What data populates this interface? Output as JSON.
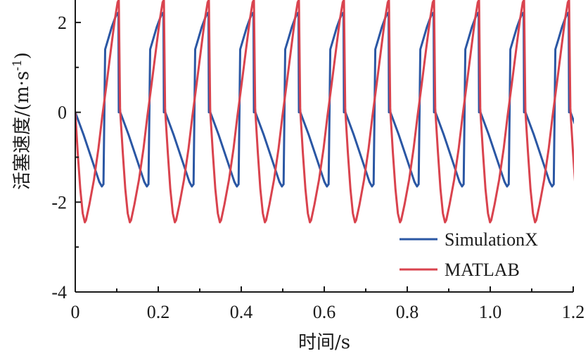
{
  "chart_data": {
    "type": "line",
    "xlabel": "时间/s",
    "ylabel_main": "活塞速度/(m·s",
    "ylabel_sup": "-1",
    "ylabel_close": ")",
    "xlim": [
      0,
      1.2
    ],
    "ylim": [
      -4,
      2.5
    ],
    "xticks": [
      "0",
      "0.2",
      "0.4",
      "0.6",
      "0.8",
      "1.0",
      "1.2"
    ],
    "yticks": [
      "-4",
      "-2",
      "0",
      "2"
    ],
    "xtick_values": [
      0,
      0.2,
      0.4,
      0.6,
      0.8,
      1.0,
      1.2
    ],
    "ytick_values": [
      -4,
      -2,
      0,
      2
    ],
    "grid": false,
    "legend_position": "bottom-right",
    "series": [
      {
        "name": "SimulationX",
        "color": "#2b57a4",
        "period": 0.1085,
        "x": [
          0,
          0.004,
          0.02,
          0.04,
          0.058,
          0.064,
          0.068,
          0.072,
          0.08,
          0.088,
          0.096,
          0.101,
          0.104,
          0.105,
          0.108
        ],
        "y": [
          0,
          -0.1,
          -0.5,
          -1.05,
          -1.55,
          -1.65,
          -1.6,
          1.4,
          1.65,
          1.9,
          2.1,
          2.2,
          2.22,
          0,
          0
        ]
      },
      {
        "name": "MATLAB",
        "color": "#d9434e",
        "period": 0.1085,
        "x": [
          0,
          0.006,
          0.012,
          0.018,
          0.023,
          0.026,
          0.034,
          0.045,
          0.056,
          0.065,
          0.075,
          0.086,
          0.095,
          0.102,
          0.105,
          0.108
        ],
        "y": [
          0,
          -0.9,
          -1.7,
          -2.25,
          -2.45,
          -2.4,
          -2.05,
          -1.5,
          -0.8,
          -0.1,
          0.6,
          1.4,
          2.05,
          2.45,
          2.5,
          0.1
        ]
      }
    ]
  }
}
